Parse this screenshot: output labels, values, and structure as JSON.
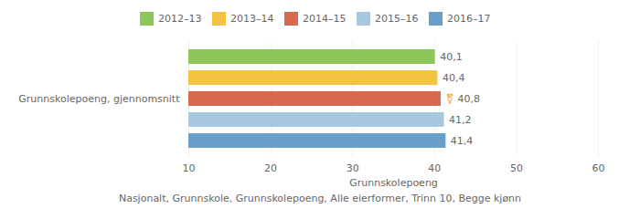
{
  "chart_data": {
    "type": "bar",
    "orientation": "horizontal",
    "categories": [
      "2012–13",
      "2013–14",
      "2014–15",
      "2015–16",
      "2016–17"
    ],
    "values": [
      40.1,
      40.4,
      40.8,
      41.2,
      41.4
    ],
    "value_labels": [
      "40,1",
      "40,4",
      "40,8",
      "41,2",
      "41,4"
    ],
    "data_labels": true,
    "colors": [
      "#8dc75a",
      "#f5c342",
      "#d9694e",
      "#a8c8e0",
      "#6a9fca"
    ],
    "xlabel": "Grunnskolepoeng",
    "ylabel": "Grunnskolepoeng, gjennomsnitt",
    "xlim": [
      10,
      60
    ],
    "xticks": [
      10,
      20,
      30,
      40,
      50,
      60
    ],
    "grid": true,
    "legend": "top",
    "tick_labels": "x",
    "annotations": [
      {
        "text": "⚧",
        "category": "2014–15",
        "color": "#f5a623"
      }
    ],
    "footnote": "Nasjonalt, Grunnskole, Grunnskolepoeng, Alle eierformer, Trinn 10, Begge kjønn"
  }
}
